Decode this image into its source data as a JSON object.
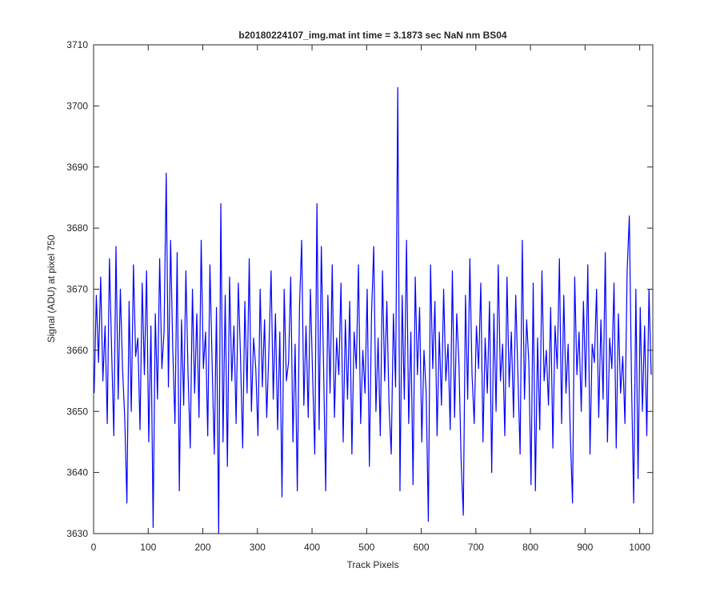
{
  "chart_data": {
    "type": "line",
    "title": "b20180224107_img.mat int time = 3.1873 sec  NaN nm BS04",
    "xlabel": "Track Pixels",
    "ylabel": "Signal (ADU) at pixel 750",
    "color": "#0000ff",
    "xlim": [
      0,
      1024
    ],
    "ylim": [
      3630,
      3710
    ],
    "xticks": [
      0,
      100,
      200,
      300,
      400,
      500,
      600,
      700,
      800,
      900,
      1000
    ],
    "yticks": [
      3630,
      3640,
      3650,
      3660,
      3670,
      3680,
      3690,
      3700,
      3710
    ],
    "x": [
      1,
      5,
      9,
      13,
      17,
      21,
      25,
      29,
      33,
      37,
      41,
      45,
      49,
      53,
      57,
      61,
      65,
      69,
      73,
      77,
      81,
      85,
      89,
      93,
      97,
      101,
      105,
      109,
      113,
      117,
      121,
      125,
      129,
      133,
      137,
      141,
      145,
      149,
      153,
      157,
      161,
      165,
      169,
      173,
      177,
      181,
      185,
      189,
      193,
      197,
      201,
      205,
      209,
      213,
      217,
      221,
      225,
      229,
      233,
      237,
      241,
      245,
      249,
      253,
      257,
      261,
      265,
      269,
      273,
      277,
      281,
      285,
      289,
      293,
      297,
      301,
      305,
      309,
      313,
      317,
      321,
      325,
      329,
      333,
      337,
      341,
      345,
      349,
      353,
      357,
      361,
      365,
      369,
      373,
      377,
      381,
      385,
      389,
      393,
      397,
      401,
      405,
      409,
      413,
      417,
      421,
      425,
      429,
      433,
      437,
      441,
      445,
      449,
      453,
      457,
      461,
      465,
      469,
      473,
      477,
      481,
      485,
      489,
      493,
      497,
      501,
      505,
      509,
      513,
      517,
      521,
      525,
      529,
      533,
      537,
      541,
      545,
      549,
      553,
      557,
      561,
      565,
      569,
      573,
      577,
      581,
      585,
      589,
      593,
      597,
      601,
      605,
      609,
      613,
      617,
      621,
      625,
      629,
      633,
      637,
      641,
      645,
      649,
      653,
      657,
      661,
      665,
      669,
      673,
      677,
      681,
      685,
      689,
      693,
      697,
      701,
      705,
      709,
      713,
      717,
      721,
      725,
      729,
      733,
      737,
      741,
      745,
      749,
      753,
      757,
      761,
      765,
      769,
      773,
      777,
      781,
      785,
      789,
      793,
      797,
      801,
      805,
      809,
      813,
      817,
      821,
      825,
      829,
      833,
      837,
      841,
      845,
      849,
      853,
      857,
      861,
      865,
      869,
      873,
      877,
      881,
      885,
      889,
      893,
      897,
      901,
      905,
      909,
      913,
      917,
      921,
      925,
      929,
      933,
      937,
      941,
      945,
      949,
      953,
      957,
      961,
      965,
      969,
      973,
      977,
      981,
      985,
      989,
      993,
      997,
      1001,
      1005,
      1009,
      1013,
      1017,
      1021
    ],
    "values": [
      3653,
      3669,
      3658,
      3672,
      3655,
      3664,
      3648,
      3675,
      3660,
      3646,
      3677,
      3652,
      3670,
      3657,
      3649,
      3635,
      3668,
      3650,
      3674,
      3659,
      3662,
      3647,
      3671,
      3656,
      3673,
      3645,
      3664,
      3631,
      3666,
      3652,
      3675,
      3657,
      3663,
      3689,
      3654,
      3678,
      3660,
      3648,
      3676,
      3637,
      3665,
      3651,
      3673,
      3656,
      3644,
      3670,
      3653,
      3666,
      3649,
      3678,
      3657,
      3663,
      3646,
      3674,
      3658,
      3643,
      3667,
      3630,
      3684,
      3645,
      3669,
      3641,
      3672,
      3655,
      3664,
      3648,
      3671,
      3659,
      3644,
      3668,
      3653,
      3675,
      3650,
      3662,
      3657,
      3646,
      3670,
      3654,
      3665,
      3649,
      3660,
      3673,
      3652,
      3666,
      3647,
      3663,
      3636,
      3670,
      3655,
      3658,
      3672,
      3645,
      3661,
      3637,
      3667,
      3678,
      3651,
      3664,
      3649,
      3670,
      3656,
      3643,
      3684,
      3647,
      3677,
      3658,
      3637,
      3669,
      3653,
      3674,
      3649,
      3662,
      3656,
      3671,
      3645,
      3665,
      3652,
      3668,
      3643,
      3663,
      3657,
      3674,
      3648,
      3660,
      3653,
      3670,
      3641,
      3666,
      3677,
      3650,
      3662,
      3646,
      3673,
      3655,
      3668,
      3651,
      3643,
      3666,
      3654,
      3703,
      3637,
      3669,
      3652,
      3678,
      3648,
      3663,
      3638,
      3672,
      3656,
      3667,
      3645,
      3660,
      3653,
      3632,
      3674,
      3657,
      3668,
      3646,
      3663,
      3651,
      3670,
      3655,
      3661,
      3647,
      3673,
      3649,
      3666,
      3658,
      3642,
      3633,
      3669,
      3652,
      3675,
      3656,
      3648,
      3664,
      3657,
      3671,
      3645,
      3662,
      3653,
      3668,
      3640,
      3666,
      3650,
      3674,
      3655,
      3661,
      3646,
      3672,
      3654,
      3663,
      3649,
      3669,
      3656,
      3643,
      3678,
      3652,
      3665,
      3658,
      3638,
      3671,
      3637,
      3662,
      3647,
      3673,
      3655,
      3660,
      3651,
      3667,
      3644,
      3664,
      3657,
      3675,
      3648,
      3669,
      3653,
      3661,
      3646,
      3635,
      3672,
      3656,
      3663,
      3650,
      3668,
      3654,
      3674,
      3643,
      3661,
      3658,
      3670,
      3649,
      3665,
      3652,
      3676,
      3645,
      3662,
      3657,
      3671,
      3644,
      3666,
      3653,
      3659,
      3648,
      3673,
      3682,
      3655,
      3635,
      3670,
      3639,
      3667,
      3650,
      3664,
      3646,
      3670,
      3656
    ]
  }
}
